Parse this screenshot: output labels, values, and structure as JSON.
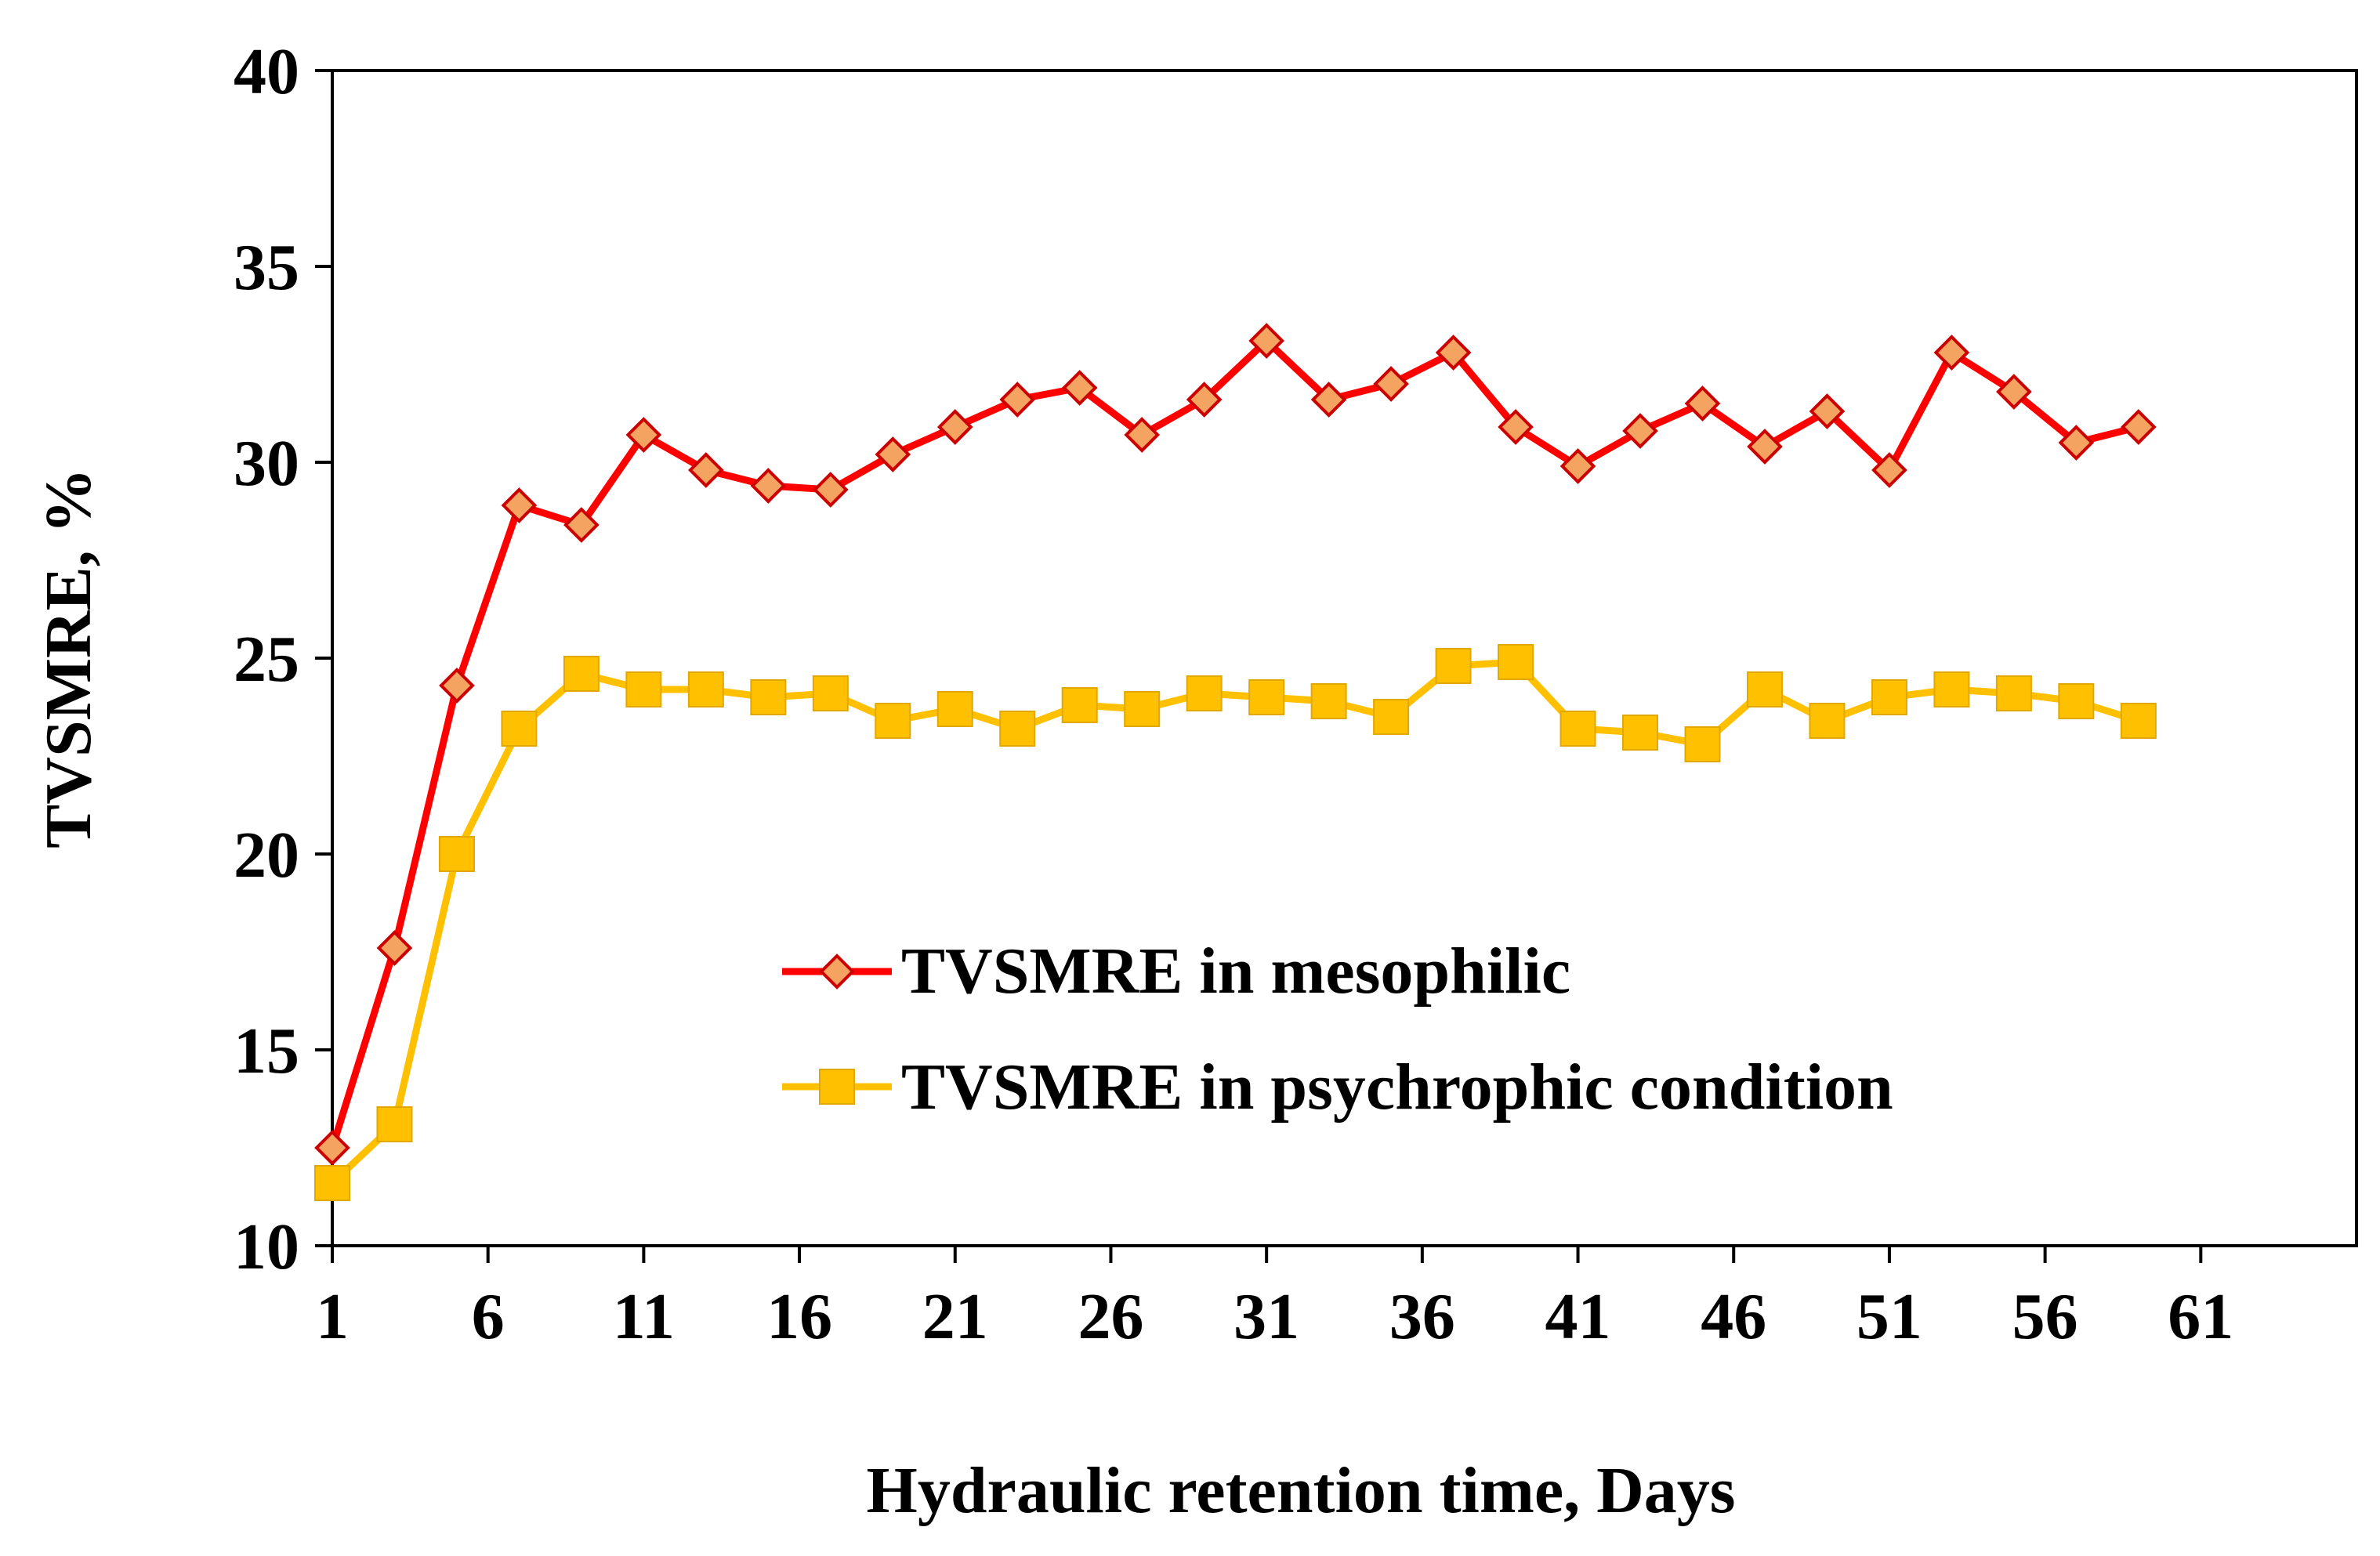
{
  "chart_data": {
    "type": "line",
    "title": "",
    "xlabel": "Hydraulic retention time, Days",
    "ylabel": "TVSMRE, %",
    "xlim": [
      1,
      66
    ],
    "ylim": [
      10,
      40
    ],
    "x_ticks": [
      1,
      6,
      11,
      16,
      21,
      26,
      31,
      36,
      41,
      46,
      51,
      56,
      61
    ],
    "y_ticks": [
      10,
      15,
      20,
      25,
      30,
      35,
      40
    ],
    "grid": false,
    "legend_position": "center-right",
    "x": [
      1,
      3,
      5,
      7,
      9,
      11,
      13,
      15,
      17,
      19,
      21,
      23,
      25,
      27,
      29,
      31,
      33,
      35,
      37,
      39,
      41,
      43,
      45,
      47,
      49,
      51,
      53,
      55,
      57,
      59
    ],
    "series": [
      {
        "name": "TVSMRE in mesophilic",
        "color": "#ff0000",
        "marker": "diamond",
        "marker_fill": "#f4a460",
        "values": [
          12.5,
          17.6,
          24.3,
          28.9,
          28.4,
          30.7,
          29.8,
          29.4,
          29.3,
          30.2,
          30.9,
          31.6,
          31.9,
          30.7,
          31.6,
          33.1,
          31.6,
          32.0,
          32.8,
          30.9,
          29.9,
          30.8,
          31.5,
          30.4,
          31.3,
          29.8,
          32.8,
          31.8,
          30.5,
          30.9
        ]
      },
      {
        "name": "TVSMRE in psychrophic condition",
        "color": "#ffc000",
        "marker": "square",
        "marker_fill": "#ffc000",
        "values": [
          11.6,
          13.1,
          20.0,
          23.2,
          24.6,
          24.2,
          24.2,
          24.0,
          24.1,
          23.4,
          23.7,
          23.2,
          23.8,
          23.7,
          24.1,
          24.0,
          23.9,
          23.5,
          24.8,
          24.9,
          23.2,
          23.1,
          22.8,
          24.2,
          23.4,
          24.0,
          24.2,
          24.1,
          23.9,
          23.4
        ]
      }
    ]
  }
}
